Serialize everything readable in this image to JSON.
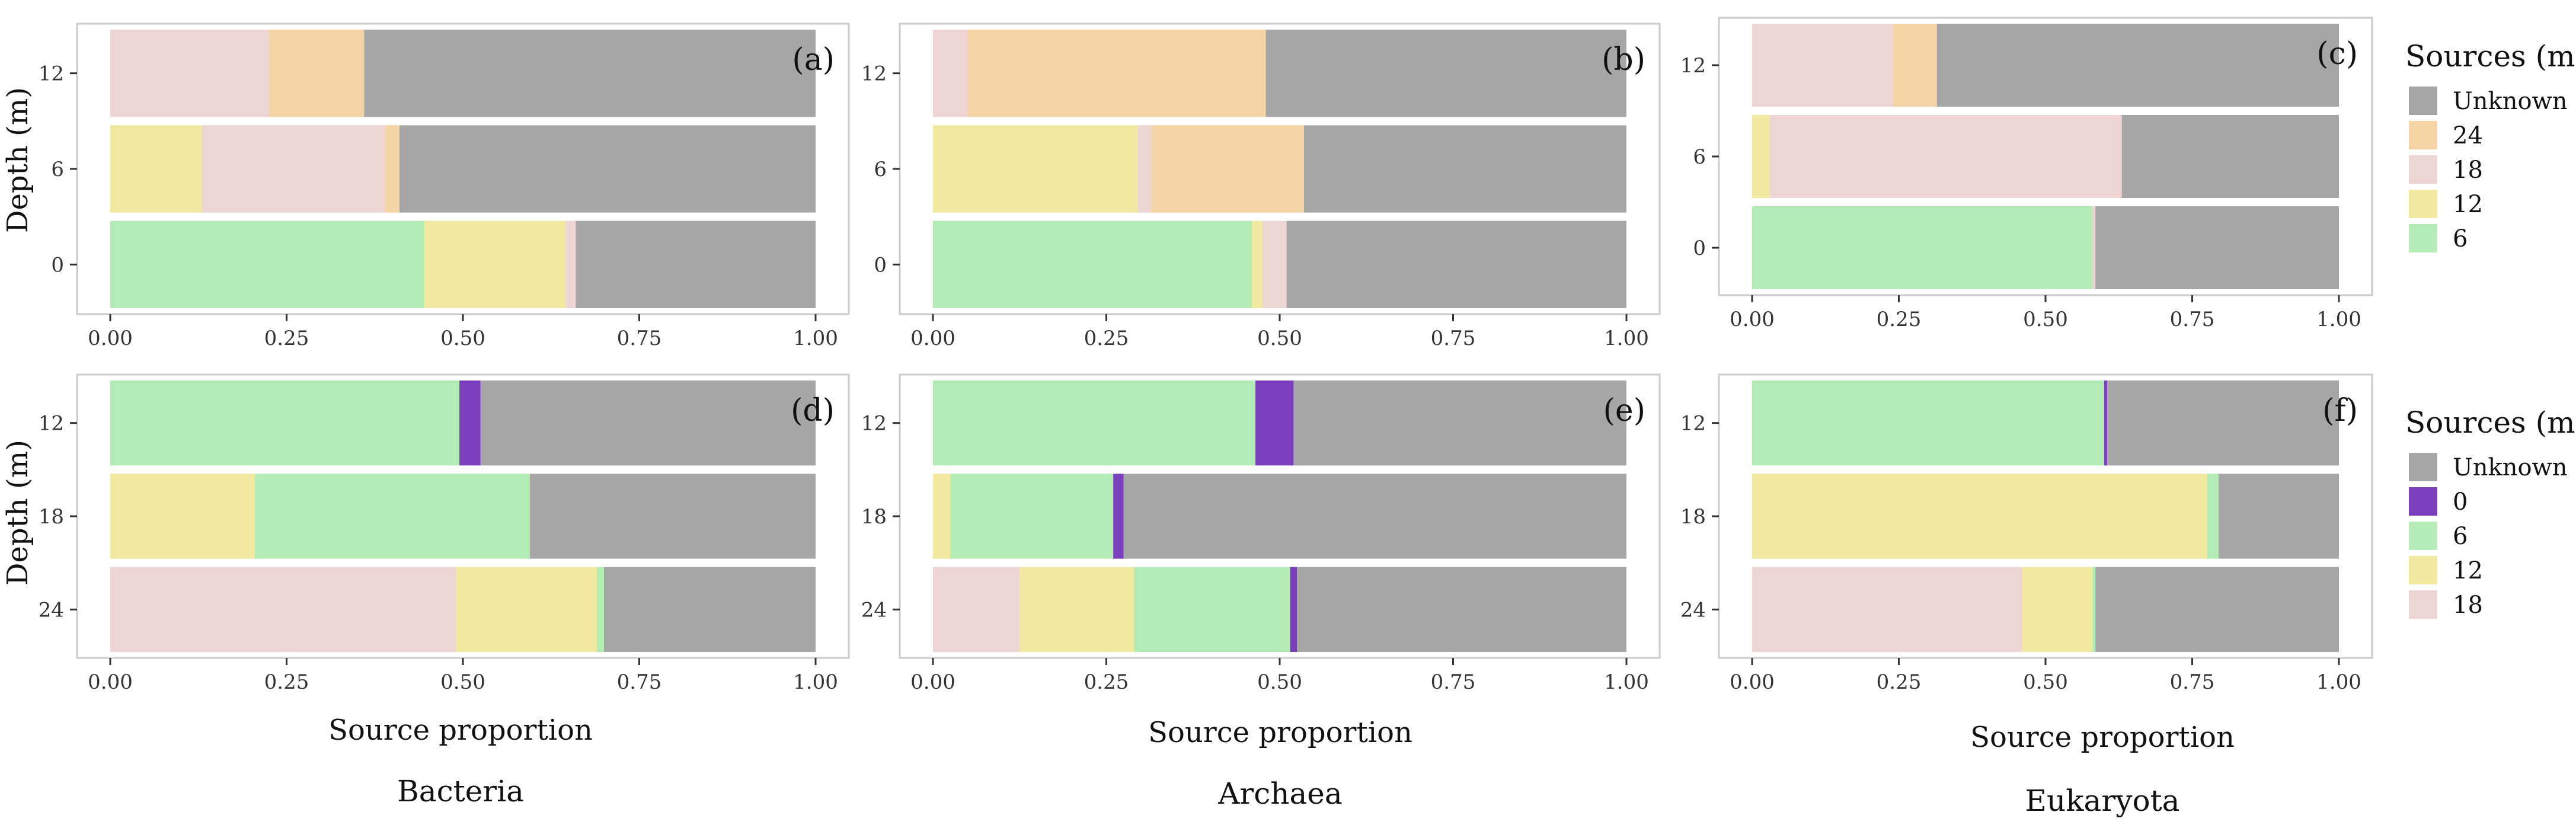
{
  "figure": {
    "ylabel": "Depth (m)",
    "xlabel": "Source proportion",
    "column_titles": [
      "Bacteria",
      "Archaea",
      "Eukaryota"
    ]
  },
  "colors": {
    "Unknown": "#a6a6a6",
    "24": "#f4d3a4",
    "18": "#efd4d4",
    "12": "#f1e99f",
    "6": "#b3ebb4",
    "0": "#7b3fbe"
  },
  "legends": [
    {
      "title": "Sources (m)",
      "items": [
        "Unknown",
        "24",
        "18",
        "12",
        "6"
      ]
    },
    {
      "title": "Sources (m)",
      "items": [
        "Unknown",
        "0",
        "6",
        "12",
        "18"
      ]
    }
  ],
  "chart_data": [
    {
      "type": "bar",
      "orientation": "horizontal",
      "stacked": true,
      "panel": "(a)",
      "xlim": [
        0,
        1
      ],
      "xticks": [
        "0.00",
        "0.25",
        "0.50",
        "0.75",
        "1.00"
      ],
      "categories": [
        "12",
        "6",
        "0"
      ],
      "series": [
        {
          "name": "6",
          "values": [
            0,
            0,
            0.445
          ]
        },
        {
          "name": "12",
          "values": [
            0,
            0.13,
            0.2
          ]
        },
        {
          "name": "18",
          "values": [
            0.225,
            0.26,
            0.015
          ]
        },
        {
          "name": "24",
          "values": [
            0.135,
            0.02,
            0
          ]
        },
        {
          "name": "Unknown",
          "values": [
            0.64,
            0.59,
            0.34
          ]
        }
      ]
    },
    {
      "type": "bar",
      "orientation": "horizontal",
      "stacked": true,
      "panel": "(b)",
      "xlim": [
        0,
        1
      ],
      "xticks": [
        "0.00",
        "0.25",
        "0.50",
        "0.75",
        "1.00"
      ],
      "categories": [
        "12",
        "6",
        "0"
      ],
      "series": [
        {
          "name": "6",
          "values": [
            0,
            0,
            0.46
          ]
        },
        {
          "name": "12",
          "values": [
            0,
            0.295,
            0.015
          ]
        },
        {
          "name": "18",
          "values": [
            0.05,
            0.02,
            0.035
          ]
        },
        {
          "name": "24",
          "values": [
            0.43,
            0.22,
            0
          ]
        },
        {
          "name": "Unknown",
          "values": [
            0.52,
            0.465,
            0.49
          ]
        }
      ]
    },
    {
      "type": "bar",
      "orientation": "horizontal",
      "stacked": true,
      "panel": "(c)",
      "xlim": [
        0,
        1
      ],
      "xticks": [
        "0.00",
        "0.25",
        "0.50",
        "0.75",
        "1.00"
      ],
      "categories": [
        "12",
        "6",
        "0"
      ],
      "series": [
        {
          "name": "6",
          "values": [
            0,
            0,
            0.58
          ]
        },
        {
          "name": "12",
          "values": [
            0,
            0.03,
            0
          ]
        },
        {
          "name": "18",
          "values": [
            0.24,
            0.6,
            0.005
          ]
        },
        {
          "name": "24",
          "values": [
            0.075,
            0,
            0
          ]
        },
        {
          "name": "Unknown",
          "values": [
            0.685,
            0.37,
            0.415
          ]
        }
      ]
    },
    {
      "type": "bar",
      "orientation": "horizontal",
      "stacked": true,
      "panel": "(d)",
      "xlim": [
        0,
        1
      ],
      "xticks": [
        "0.00",
        "0.25",
        "0.50",
        "0.75",
        "1.00"
      ],
      "categories": [
        "12",
        "18",
        "24"
      ],
      "series": [
        {
          "name": "18",
          "values": [
            0,
            0,
            0.49
          ]
        },
        {
          "name": "12",
          "values": [
            0,
            0.205,
            0.2
          ]
        },
        {
          "name": "6",
          "values": [
            0.495,
            0.39,
            0.01
          ]
        },
        {
          "name": "0",
          "values": [
            0.03,
            0,
            0
          ]
        },
        {
          "name": "Unknown",
          "values": [
            0.475,
            0.405,
            0.3
          ]
        }
      ]
    },
    {
      "type": "bar",
      "orientation": "horizontal",
      "stacked": true,
      "panel": "(e)",
      "xlim": [
        0,
        1
      ],
      "xticks": [
        "0.00",
        "0.25",
        "0.50",
        "0.75",
        "1.00"
      ],
      "categories": [
        "12",
        "18",
        "24"
      ],
      "series": [
        {
          "name": "18",
          "values": [
            0,
            0,
            0.125
          ]
        },
        {
          "name": "12",
          "values": [
            0,
            0.025,
            0.165
          ]
        },
        {
          "name": "6",
          "values": [
            0.465,
            0.235,
            0.225
          ]
        },
        {
          "name": "0",
          "values": [
            0.055,
            0.015,
            0.01
          ]
        },
        {
          "name": "Unknown",
          "values": [
            0.48,
            0.725,
            0.475
          ]
        }
      ]
    },
    {
      "type": "bar",
      "orientation": "horizontal",
      "stacked": true,
      "panel": "(f)",
      "xlim": [
        0,
        1
      ],
      "xticks": [
        "0.00",
        "0.25",
        "0.50",
        "0.75",
        "1.00"
      ],
      "categories": [
        "12",
        "18",
        "24"
      ],
      "series": [
        {
          "name": "18",
          "values": [
            0,
            0,
            0.46
          ]
        },
        {
          "name": "12",
          "values": [
            0,
            0.775,
            0.12
          ]
        },
        {
          "name": "6",
          "values": [
            0.6,
            0.02,
            0.005
          ]
        },
        {
          "name": "0",
          "values": [
            0.005,
            0,
            0
          ]
        },
        {
          "name": "Unknown",
          "values": [
            0.395,
            0.205,
            0.415
          ]
        }
      ]
    }
  ]
}
